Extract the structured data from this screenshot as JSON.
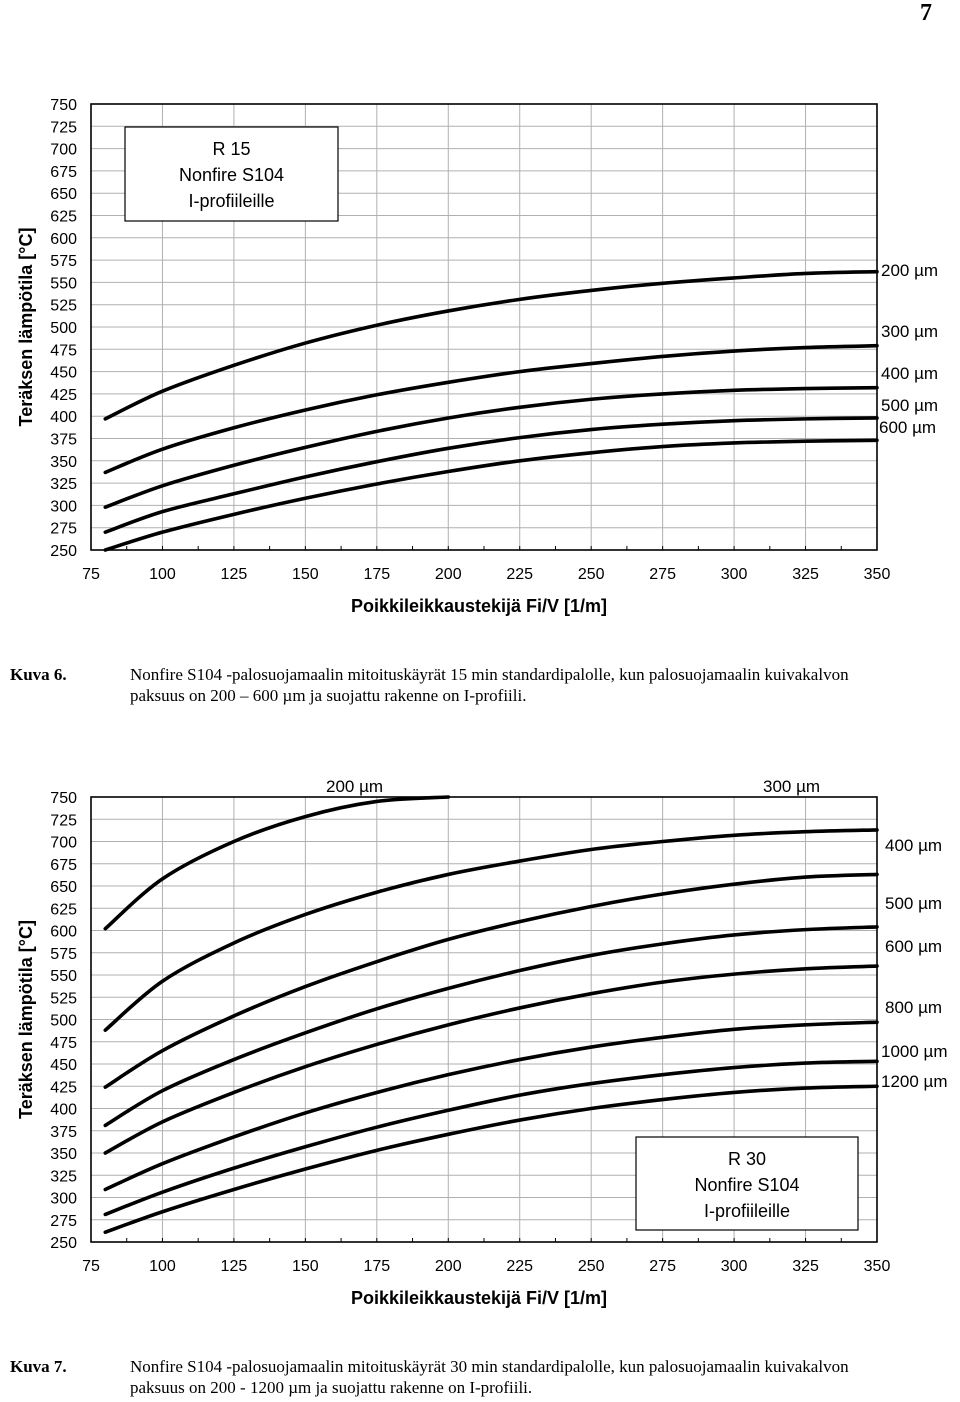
{
  "page": {
    "number": "7"
  },
  "charts": [
    {
      "caption": {
        "label": "Kuva 6.",
        "text": "Nonfire S104 -palosuojamaalin mitoituskäyrät 15 min standardipalolle, kun palosuojamaalin kuivakalvon paksuus on 200 – 600 µm ja suojattu rakenne on I-profiili."
      },
      "box": [
        "R 15",
        "Nonfire S104",
        "I-profiileille"
      ]
    },
    {
      "caption": {
        "label": "Kuva 7.",
        "text": "Nonfire S104 -palosuojamaalin mitoituskäyrät 30 min standardipalolle, kun palosuojamaalin kuivakalvon paksuus on 200 - 1200 µm ja suojattu rakenne on I-profiili."
      },
      "box": [
        "R 30",
        "Nonfire S104",
        "I-profiileille"
      ]
    }
  ],
  "chart_data": [
    {
      "type": "line",
      "xlabel": "Poikkileikkaustekijä Fi/V [1/m]",
      "ylabel": "Teräksen lämpötila [°C]",
      "xlim": [
        75,
        350
      ],
      "ylim": [
        250,
        750
      ],
      "xticks": [
        75,
        100,
        125,
        150,
        175,
        200,
        225,
        250,
        275,
        300,
        325,
        350
      ],
      "yticks": [
        250,
        275,
        300,
        325,
        350,
        375,
        400,
        425,
        450,
        475,
        500,
        525,
        550,
        575,
        600,
        625,
        650,
        675,
        700,
        725,
        750
      ],
      "grid": true,
      "series": [
        {
          "name": "200 µm",
          "x": [
            80,
            100,
            125,
            150,
            175,
            200,
            225,
            250,
            275,
            300,
            325,
            350
          ],
          "y": [
            397,
            428,
            457,
            482,
            502,
            518,
            531,
            541,
            549,
            555,
            560,
            562
          ]
        },
        {
          "name": "300 µm",
          "x": [
            80,
            100,
            125,
            150,
            175,
            200,
            225,
            250,
            275,
            300,
            325,
            350
          ],
          "y": [
            337,
            363,
            387,
            407,
            424,
            438,
            450,
            459,
            467,
            473,
            477,
            479
          ]
        },
        {
          "name": "400 µm",
          "x": [
            80,
            100,
            125,
            150,
            175,
            200,
            225,
            250,
            275,
            300,
            325,
            350
          ],
          "y": [
            298,
            322,
            345,
            365,
            383,
            398,
            410,
            419,
            425,
            429,
            431,
            432
          ]
        },
        {
          "name": "500 µm",
          "x": [
            80,
            100,
            125,
            150,
            175,
            200,
            225,
            250,
            275,
            300,
            325,
            350
          ],
          "y": [
            270,
            293,
            313,
            332,
            349,
            364,
            376,
            385,
            391,
            395,
            397,
            398
          ]
        },
        {
          "name": "600 µm",
          "x": [
            80,
            100,
            125,
            150,
            175,
            200,
            225,
            250,
            275,
            300,
            325,
            350
          ],
          "y": [
            250,
            270,
            290,
            308,
            324,
            338,
            350,
            359,
            366,
            370,
            372,
            373
          ]
        }
      ]
    },
    {
      "type": "line",
      "xlabel": "Poikkileikkaustekijä Fi/V [1/m]",
      "ylabel": "Teräksen lämpötila [°C]",
      "xlim": [
        75,
        350
      ],
      "ylim": [
        250,
        750
      ],
      "xticks": [
        75,
        100,
        125,
        150,
        175,
        200,
        225,
        250,
        275,
        300,
        325,
        350
      ],
      "yticks": [
        250,
        275,
        300,
        325,
        350,
        375,
        400,
        425,
        450,
        475,
        500,
        525,
        550,
        575,
        600,
        625,
        650,
        675,
        700,
        725,
        750
      ],
      "grid": true,
      "series": [
        {
          "name": "200 µm",
          "x": [
            80,
            100,
            125,
            150,
            175,
            200
          ],
          "y": [
            602,
            658,
            700,
            728,
            745,
            750
          ]
        },
        {
          "name": "300 µm",
          "x": [
            80,
            100,
            125,
            150,
            175,
            200,
            225,
            250,
            275,
            300,
            325,
            350
          ],
          "y": [
            488,
            543,
            586,
            618,
            643,
            663,
            678,
            691,
            700,
            707,
            711,
            713
          ]
        },
        {
          "name": "400 µm",
          "x": [
            80,
            100,
            125,
            150,
            175,
            200,
            225,
            250,
            275,
            300,
            325,
            350
          ],
          "y": [
            424,
            465,
            504,
            537,
            565,
            590,
            610,
            627,
            641,
            652,
            660,
            663
          ]
        },
        {
          "name": "500 µm",
          "x": [
            80,
            100,
            125,
            150,
            175,
            200,
            225,
            250,
            275,
            300,
            325,
            350
          ],
          "y": [
            381,
            420,
            455,
            485,
            512,
            535,
            555,
            572,
            585,
            595,
            601,
            604
          ]
        },
        {
          "name": "600 µm",
          "x": [
            80,
            100,
            125,
            150,
            175,
            200,
            225,
            250,
            275,
            300,
            325,
            350
          ],
          "y": [
            350,
            385,
            418,
            447,
            472,
            494,
            513,
            529,
            542,
            551,
            557,
            560
          ]
        },
        {
          "name": "800 µm",
          "x": [
            80,
            100,
            125,
            150,
            175,
            200,
            225,
            250,
            275,
            300,
            325,
            350
          ],
          "y": [
            309,
            338,
            368,
            395,
            418,
            438,
            455,
            469,
            480,
            489,
            494,
            497
          ]
        },
        {
          "name": "1000 µm",
          "x": [
            80,
            100,
            125,
            150,
            175,
            200,
            225,
            250,
            275,
            300,
            325,
            350
          ],
          "y": [
            281,
            306,
            333,
            357,
            379,
            398,
            415,
            428,
            438,
            446,
            451,
            453
          ]
        },
        {
          "name": "1200 µm",
          "x": [
            80,
            100,
            125,
            150,
            175,
            200,
            225,
            250,
            275,
            300,
            325,
            350
          ],
          "y": [
            261,
            284,
            309,
            332,
            353,
            371,
            387,
            400,
            410,
            418,
            423,
            425
          ]
        }
      ]
    }
  ]
}
